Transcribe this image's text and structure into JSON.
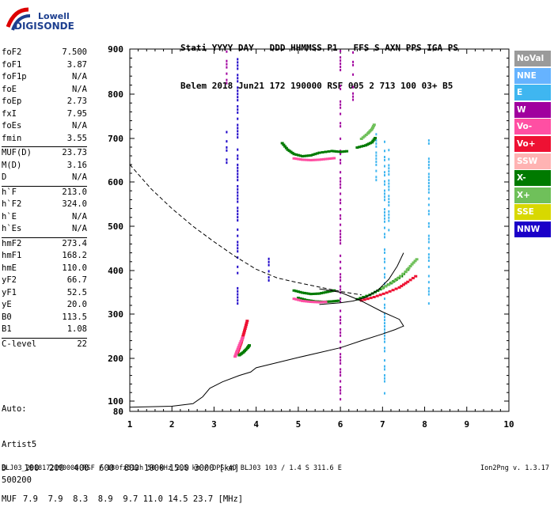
{
  "logo": {
    "line1": "Lowell",
    "line2": "DIGISONDE"
  },
  "header": {
    "line1": "Stati YYYY DAY   DDD HHMMSS P1   FFS S AXN PPS IGA PS",
    "line2": "Belem 2018 Jun21 172 190000 RSF 005 2 713 100 03+ B5"
  },
  "params": [
    {
      "label": "foF2",
      "value": "7.500"
    },
    {
      "label": "foF1",
      "value": "3.87"
    },
    {
      "label": "foF1p",
      "value": "N/A"
    },
    {
      "label": "foE",
      "value": "N/A"
    },
    {
      "label": "foEp",
      "value": "2.73"
    },
    {
      "label": "fxI",
      "value": "7.95"
    },
    {
      "label": "foEs",
      "value": "N/A"
    },
    {
      "label": "fmin",
      "value": "3.55"
    },
    {
      "label": "MUF(D)",
      "value": "23.73"
    },
    {
      "label": "M(D)",
      "value": "3.16"
    },
    {
      "label": "D",
      "value": "N/A"
    },
    {
      "label": "h`F",
      "value": "213.0"
    },
    {
      "label": "h`F2",
      "value": "324.0"
    },
    {
      "label": "h`E",
      "value": "N/A"
    },
    {
      "label": "h`Es",
      "value": "N/A"
    },
    {
      "label": "hmF2",
      "value": "273.4"
    },
    {
      "label": "hmF1",
      "value": "168.2"
    },
    {
      "label": "hmE",
      "value": "110.0"
    },
    {
      "label": "yF2",
      "value": "66.7"
    },
    {
      "label": "yF1",
      "value": "52.5"
    },
    {
      "label": "yE",
      "value": "20.0"
    },
    {
      "label": "B0",
      "value": "113.5"
    },
    {
      "label": "B1",
      "value": "1.08"
    },
    {
      "label": "C-level",
      "value": "22"
    }
  ],
  "auto": {
    "line1": "Auto:",
    "line2": "Artist5",
    "line3": "500200"
  },
  "dmuf": {
    "d_label": "D",
    "d_values": "100  200  400  600  800 1000 1500 3000 [km]",
    "muf_label": "MUF",
    "muf_values": "7.9  7.9  8.3  8.9  9.7 11.0 14.5 23.7 [MHz]"
  },
  "footer": "BLJ03_2018172190000.RSF / 180fx512h 50 kHz 2.5 km / DPS-4D BLJ03 103 / 1.4 S 311.6 E",
  "version": "Ion2Png v. 1.3.17",
  "legend": [
    {
      "label": "NoVal",
      "color": "#9a9a9a"
    },
    {
      "label": "NNE",
      "color": "#66b3ff"
    },
    {
      "label": "E",
      "color": "#3fb6f0"
    },
    {
      "label": "W",
      "color": "#a0009e"
    },
    {
      "label": "Vo-",
      "color": "#ff4fa3"
    },
    {
      "label": "Vo+",
      "color": "#ee1133"
    },
    {
      "label": "SSW",
      "color": "#ffb3b3"
    },
    {
      "label": "X-",
      "color": "#007a00"
    },
    {
      "label": "X+",
      "color": "#6fc05a"
    },
    {
      "label": "SSE",
      "color": "#d8d800"
    },
    {
      "label": "NNW",
      "color": "#1b00c8"
    }
  ],
  "chart_data": {
    "type": "scatter",
    "xlabel": "",
    "ylabel": "",
    "xlim": [
      1,
      10
    ],
    "ylim": [
      80,
      900
    ],
    "x_ticks": [
      "1",
      "2",
      "3",
      "4",
      "5",
      "6",
      "7",
      "8",
      "9",
      "10"
    ],
    "y_ticks": [
      "80",
      "100",
      "200",
      "300",
      "400",
      "500",
      "600",
      "700",
      "800",
      "900"
    ],
    "series": [
      {
        "color": "#007a00",
        "points": [
          [
            4.62,
            690
          ],
          [
            4.75,
            675
          ],
          [
            4.9,
            665
          ],
          [
            5.1,
            660
          ],
          [
            5.3,
            662
          ],
          [
            5.5,
            668
          ],
          [
            5.8,
            672
          ],
          [
            6.0,
            670
          ],
          [
            6.2,
            672
          ]
        ]
      },
      {
        "color": "#ff4fa3",
        "points": [
          [
            4.9,
            655
          ],
          [
            5.1,
            652
          ],
          [
            5.3,
            651
          ],
          [
            5.5,
            652
          ],
          [
            5.7,
            654
          ],
          [
            5.9,
            656
          ]
        ]
      },
      {
        "color": "#007a00",
        "points": [
          [
            6.4,
            680
          ],
          [
            6.6,
            685
          ],
          [
            6.75,
            692
          ],
          [
            6.85,
            705
          ]
        ]
      },
      {
        "color": "#6fc05a",
        "points": [
          [
            6.5,
            700
          ],
          [
            6.65,
            712
          ],
          [
            6.75,
            722
          ],
          [
            6.82,
            735
          ]
        ]
      },
      {
        "color": "#007a00",
        "points": [
          [
            5.0,
            338
          ],
          [
            5.2,
            333
          ],
          [
            5.4,
            330
          ],
          [
            5.6,
            329
          ],
          [
            5.8,
            330
          ],
          [
            6.0,
            332
          ]
        ]
      },
      {
        "color": "#ff4fa3",
        "points": [
          [
            4.9,
            336
          ],
          [
            5.1,
            331
          ],
          [
            5.3,
            329
          ],
          [
            5.5,
            328
          ],
          [
            5.7,
            329
          ]
        ]
      },
      {
        "color": "#ee1133",
        "points": [
          [
            6.5,
            332
          ],
          [
            6.8,
            340
          ],
          [
            7.1,
            350
          ],
          [
            7.4,
            362
          ],
          [
            7.6,
            375
          ],
          [
            7.85,
            392
          ]
        ]
      },
      {
        "color": "#007a00",
        "points": [
          [
            6.4,
            335
          ],
          [
            6.7,
            345
          ],
          [
            6.95,
            358
          ],
          [
            7.2,
            372
          ],
          [
            7.45,
            388
          ],
          [
            7.65,
            408
          ]
        ]
      },
      {
        "color": "#6fc05a",
        "points": [
          [
            7.0,
            360
          ],
          [
            7.3,
            378
          ],
          [
            7.55,
            398
          ],
          [
            7.7,
            415
          ],
          [
            7.85,
            430
          ]
        ]
      },
      {
        "color": "#007a00",
        "points": [
          [
            4.9,
            355
          ],
          [
            5.1,
            350
          ],
          [
            5.3,
            347
          ],
          [
            5.5,
            348
          ],
          [
            5.7,
            352
          ],
          [
            5.9,
            356
          ]
        ]
      },
      {
        "color": "#ee1133",
        "points": [
          [
            3.55,
            212
          ],
          [
            3.6,
            225
          ],
          [
            3.65,
            238
          ],
          [
            3.7,
            255
          ],
          [
            3.75,
            272
          ],
          [
            3.8,
            290
          ]
        ]
      },
      {
        "color": "#ff4fa3",
        "points": [
          [
            3.5,
            205
          ],
          [
            3.55,
            218
          ],
          [
            3.62,
            235
          ],
          [
            3.7,
            252
          ]
        ]
      },
      {
        "color": "#007a00",
        "points": [
          [
            3.6,
            208
          ],
          [
            3.7,
            215
          ],
          [
            3.8,
            225
          ],
          [
            3.85,
            232
          ]
        ]
      }
    ],
    "profile_line": [
      [
        1.0,
        88
      ],
      [
        1.5,
        89
      ],
      [
        2.0,
        90
      ],
      [
        2.5,
        95
      ],
      [
        2.73,
        110
      ],
      [
        2.9,
        130
      ],
      [
        3.2,
        145
      ],
      [
        3.6,
        160
      ],
      [
        3.87,
        168
      ],
      [
        4.0,
        178
      ],
      [
        4.5,
        190
      ],
      [
        5.0,
        202
      ],
      [
        5.5,
        213
      ],
      [
        6.0,
        224
      ],
      [
        6.5,
        240
      ],
      [
        7.0,
        255
      ],
      [
        7.3,
        265
      ],
      [
        7.5,
        273
      ],
      [
        7.4,
        288
      ],
      [
        7.0,
        305
      ],
      [
        6.5,
        330
      ],
      [
        6.0,
        350
      ],
      [
        5.5,
        358
      ]
    ],
    "trace_line": [
      [
        5.5,
        322
      ],
      [
        6.0,
        326
      ],
      [
        6.3,
        330
      ],
      [
        6.6,
        338
      ],
      [
        6.9,
        356
      ],
      [
        7.15,
        380
      ],
      [
        7.35,
        410
      ],
      [
        7.5,
        440
      ]
    ],
    "muf_curve": [
      [
        1.0,
        640
      ],
      [
        1.5,
        585
      ],
      [
        2.0,
        540
      ],
      [
        2.5,
        500
      ],
      [
        3.0,
        465
      ],
      [
        3.5,
        432
      ],
      [
        4.0,
        403
      ],
      [
        4.5,
        383
      ],
      [
        5.0,
        372
      ],
      [
        5.5,
        362
      ],
      [
        6.0,
        352
      ],
      [
        6.5,
        344
      ]
    ]
  }
}
